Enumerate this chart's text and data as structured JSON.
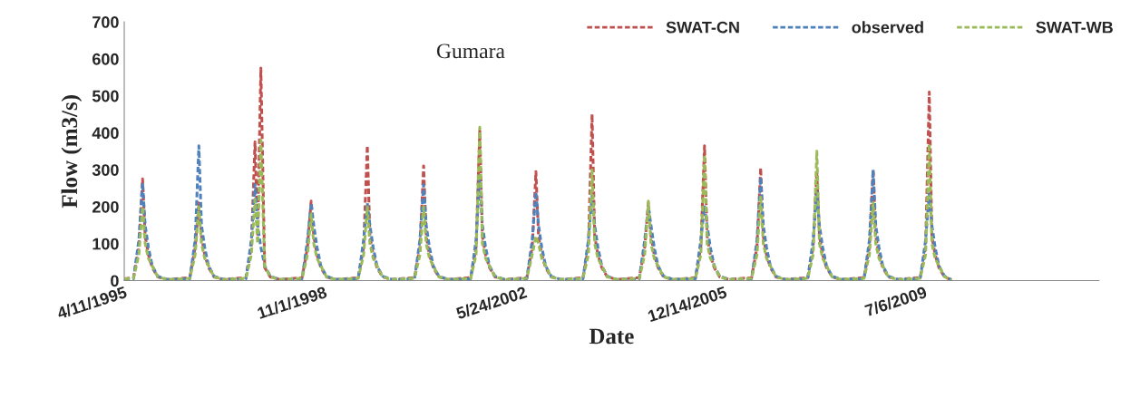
{
  "chart_data": {
    "type": "line",
    "title": "Gumara",
    "xlabel": "Date",
    "ylabel": "Flow (m3/s)",
    "x": [
      "1995-04-11",
      "1995-06-10",
      "1995-07-15",
      "1995-08-08",
      "1995-08-25",
      "1995-09-15",
      "1995-10-10",
      "1995-11-15",
      "1996-01-15",
      "1996-06-10",
      "1996-07-15",
      "1996-08-08",
      "1996-08-25",
      "1996-09-15",
      "1996-10-10",
      "1996-11-15",
      "1997-01-15",
      "1997-06-10",
      "1997-07-15",
      "1997-08-08",
      "1997-08-25",
      "1997-09-15",
      "1997-10-10",
      "1997-11-15",
      "1998-01-15",
      "1998-06-10",
      "1998-07-15",
      "1998-08-08",
      "1998-08-25",
      "1998-09-15",
      "1998-10-10",
      "1998-11-15",
      "1999-01-15",
      "1999-06-10",
      "1999-07-15",
      "1999-08-08",
      "1999-08-25",
      "1999-09-15",
      "1999-10-10",
      "1999-11-15",
      "2000-01-15",
      "2000-06-10",
      "2000-07-15",
      "2000-08-08",
      "2000-08-25",
      "2000-09-15",
      "2000-10-10",
      "2000-11-15",
      "2001-01-15",
      "2001-06-10",
      "2001-07-15",
      "2001-08-08",
      "2001-08-25",
      "2001-09-15",
      "2001-10-10",
      "2001-11-15",
      "2002-01-15",
      "2002-06-10",
      "2002-07-15",
      "2002-08-08",
      "2002-08-25",
      "2002-09-15",
      "2002-10-10",
      "2002-11-15",
      "2003-01-15",
      "2003-06-10",
      "2003-07-15",
      "2003-08-08",
      "2003-08-25",
      "2003-09-15",
      "2003-10-10",
      "2003-11-15",
      "2004-01-15",
      "2004-06-10",
      "2004-07-15",
      "2004-08-08",
      "2004-08-25",
      "2004-09-15",
      "2004-10-10",
      "2004-11-15",
      "2005-01-15",
      "2005-06-10",
      "2005-07-15",
      "2005-08-08",
      "2005-08-25",
      "2005-09-15",
      "2005-10-10",
      "2005-11-15",
      "2006-01-15",
      "2006-06-10",
      "2006-07-15",
      "2006-08-08",
      "2006-08-25",
      "2006-09-15",
      "2006-10-10",
      "2006-11-15",
      "2007-01-15",
      "2007-06-10",
      "2007-07-15",
      "2007-08-08",
      "2007-08-25",
      "2007-09-15",
      "2007-10-10",
      "2007-11-15",
      "2008-01-15",
      "2008-06-10",
      "2008-07-15",
      "2008-08-08",
      "2008-08-25",
      "2008-09-15",
      "2008-10-10",
      "2008-11-15",
      "2009-01-15",
      "2009-06-10",
      "2009-07-15",
      "2009-08-08",
      "2009-08-25",
      "2009-09-15",
      "2009-10-10",
      "2009-11-15",
      "2009-12-31"
    ],
    "series": [
      {
        "name": "SWAT-CN",
        "color": "#c0504d",
        "values": [
          5,
          8,
          90,
          275,
          120,
          70,
          35,
          10,
          3,
          8,
          90,
          210,
          120,
          70,
          35,
          10,
          3,
          8,
          90,
          375,
          120,
          575,
          35,
          10,
          3,
          8,
          90,
          215,
          120,
          70,
          35,
          10,
          3,
          8,
          90,
          365,
          120,
          70,
          35,
          10,
          3,
          8,
          90,
          310,
          120,
          70,
          35,
          10,
          3,
          8,
          90,
          405,
          120,
          70,
          35,
          10,
          3,
          8,
          90,
          295,
          120,
          70,
          35,
          10,
          3,
          8,
          90,
          450,
          120,
          70,
          35,
          10,
          3,
          8,
          90,
          210,
          120,
          70,
          35,
          10,
          3,
          8,
          90,
          365,
          120,
          70,
          35,
          10,
          3,
          8,
          90,
          305,
          120,
          70,
          35,
          10,
          3,
          8,
          90,
          295,
          120,
          70,
          35,
          10,
          3,
          8,
          90,
          300,
          120,
          70,
          35,
          10,
          3,
          8,
          90,
          510,
          120,
          70,
          35,
          10,
          2
        ]
      },
      {
        "name": "observed",
        "color": "#4f81bd",
        "values": [
          5,
          5,
          110,
          265,
          150,
          90,
          40,
          12,
          3,
          5,
          110,
          365,
          150,
          90,
          40,
          12,
          3,
          5,
          110,
          260,
          150,
          90,
          40,
          12,
          3,
          5,
          110,
          210,
          150,
          90,
          40,
          12,
          3,
          5,
          110,
          210,
          150,
          90,
          40,
          12,
          3,
          5,
          110,
          260,
          150,
          90,
          40,
          12,
          3,
          5,
          110,
          285,
          150,
          90,
          40,
          12,
          3,
          5,
          110,
          240,
          150,
          90,
          40,
          12,
          3,
          5,
          110,
          230,
          150,
          90,
          40,
          12,
          3,
          5,
          110,
          200,
          150,
          90,
          40,
          12,
          3,
          5,
          110,
          200,
          150,
          90,
          40,
          12,
          3,
          5,
          110,
          280,
          150,
          90,
          40,
          12,
          3,
          5,
          110,
          240,
          150,
          90,
          40,
          12,
          3,
          5,
          110,
          300,
          150,
          90,
          40,
          12,
          3,
          5,
          110,
          235,
          150,
          90,
          40,
          12,
          2
        ]
      },
      {
        "name": "SWAT-WB",
        "color": "#9bbb59",
        "values": [
          5,
          6,
          70,
          200,
          100,
          60,
          40,
          10,
          3,
          6,
          70,
          200,
          100,
          60,
          40,
          10,
          3,
          6,
          70,
          220,
          100,
          380,
          40,
          10,
          3,
          6,
          70,
          180,
          100,
          60,
          40,
          10,
          3,
          6,
          70,
          200,
          100,
          60,
          40,
          10,
          3,
          6,
          70,
          200,
          100,
          60,
          40,
          10,
          3,
          6,
          70,
          415,
          100,
          60,
          40,
          10,
          3,
          6,
          70,
          120,
          100,
          60,
          40,
          10,
          3,
          6,
          70,
          300,
          100,
          60,
          40,
          10,
          3,
          6,
          70,
          215,
          100,
          60,
          40,
          10,
          3,
          6,
          70,
          340,
          100,
          60,
          40,
          10,
          3,
          6,
          70,
          230,
          100,
          60,
          40,
          10,
          3,
          6,
          70,
          350,
          100,
          60,
          40,
          10,
          3,
          6,
          70,
          210,
          100,
          60,
          40,
          10,
          3,
          6,
          70,
          370,
          100,
          60,
          40,
          10,
          2
        ]
      }
    ],
    "xlim": [
      "1995-04-11",
      "2012-08-15"
    ],
    "xticks": [
      {
        "value": "1995-04-11",
        "label": "4/11/1995"
      },
      {
        "value": "1998-11-01",
        "label": "11/1/1998"
      },
      {
        "value": "2002-05-24",
        "label": "5/24/2002"
      },
      {
        "value": "2005-12-14",
        "label": "12/14/2005"
      },
      {
        "value": "2009-07-06",
        "label": "7/6/2009"
      }
    ],
    "ylim": [
      0,
      700
    ],
    "yticks": [
      0,
      100,
      200,
      300,
      400,
      500,
      600,
      700
    ],
    "grid": false,
    "legend": "top right",
    "line_style": "dashed",
    "marker": "none"
  }
}
